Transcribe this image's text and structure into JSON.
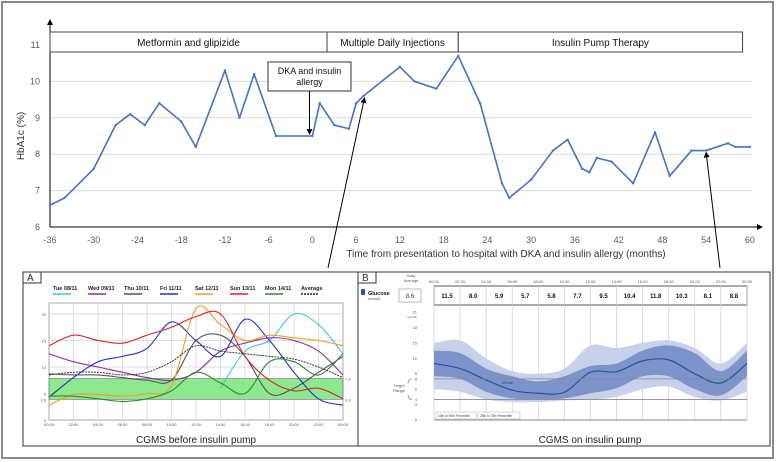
{
  "figure": {
    "panel_a_label": "A",
    "panel_b_label": "B",
    "panel_a_title": "CGMS before insulin pump",
    "panel_b_title": "CGMS on insulin pump"
  },
  "chart_data": [
    {
      "type": "line",
      "id": "hba1c",
      "title": "",
      "xlabel": "Time from presentation to hospital with DKA and insulin allergy (months)",
      "ylabel": "HbA1c (%)",
      "xlim": [
        -36,
        60
      ],
      "ylim": [
        6,
        11
      ],
      "xticks": [
        "-36",
        "-30",
        "-24",
        "-18",
        "-12",
        "-6",
        "0",
        "6",
        "12",
        "18",
        "24",
        "30",
        "36",
        "42",
        "48",
        "54",
        "60"
      ],
      "yticks": [
        "6",
        "7",
        "8",
        "9",
        "10",
        "11"
      ],
      "grid": true,
      "color": "#4472C4",
      "x": [
        -36,
        -34,
        -30,
        -27,
        -25,
        -23,
        -21,
        -18,
        -16,
        -12,
        -10,
        -8,
        -5,
        0,
        1,
        3,
        5,
        6,
        7,
        12,
        14,
        17,
        20,
        23,
        26,
        27,
        30,
        33,
        35,
        37,
        38,
        39,
        41,
        44,
        47,
        49,
        52,
        54,
        57,
        58,
        60
      ],
      "y": [
        6.6,
        6.8,
        7.6,
        8.8,
        9.1,
        8.8,
        9.4,
        8.9,
        8.2,
        10.3,
        9.0,
        10.2,
        8.5,
        8.5,
        9.4,
        8.8,
        8.7,
        9.4,
        9.6,
        10.4,
        10.0,
        9.8,
        10.7,
        9.4,
        7.2,
        6.8,
        7.3,
        8.1,
        8.4,
        7.6,
        7.5,
        7.9,
        7.8,
        7.2,
        8.6,
        7.4,
        8.1,
        8.1,
        8.3,
        8.2,
        8.2
      ],
      "phases": [
        {
          "label": "Metformin and glipizide",
          "start": -36,
          "end": 2
        },
        {
          "label": "Multiple Daily Injections",
          "start": 2,
          "end": 20
        },
        {
          "label": "Insulin Pump Therapy",
          "start": 20,
          "end": 59
        }
      ],
      "annotation": {
        "lines": [
          "DKA and insulin",
          "allergy"
        ],
        "x": 0,
        "y": 8.5
      }
    },
    {
      "type": "line",
      "id": "cgms_before",
      "title": "CGMS before insulin pump",
      "xticks": [
        "00:00",
        "02:00",
        "04:00",
        "06:00",
        "08:00",
        "10:00",
        "12:00",
        "14:00",
        "16:00",
        "18:00",
        "20:00",
        "22:00",
        "00:00"
      ],
      "yticks": [
        "0",
        "3.9",
        "5",
        "10",
        "15",
        "20"
      ],
      "ylim": [
        0,
        22
      ],
      "target_range": {
        "low": 3.9,
        "high": 7.8,
        "low_label": "3.9",
        "high_label": "7.8"
      },
      "hours": [
        0,
        2,
        4,
        6,
        8,
        10,
        12,
        14,
        16,
        18,
        20,
        22,
        24
      ],
      "series": [
        {
          "name": "Tue 08/11",
          "color": "#3EC6E8",
          "values": [
            null,
            null,
            null,
            null,
            null,
            null,
            null,
            6,
            13,
            15,
            20,
            18,
            12.5
          ]
        },
        {
          "name": "Wed 09/11",
          "color": "#8E2F9E",
          "values": [
            12.5,
            11,
            10,
            9,
            8,
            7.5,
            9,
            13,
            14.5,
            15.5,
            15,
            13,
            8.5
          ]
        },
        {
          "name": "Thu 10/11",
          "color": "#555555",
          "values": [
            8.7,
            8.5,
            8.5,
            8,
            7.5,
            7.5,
            15,
            16,
            12,
            5,
            6,
            9,
            12
          ]
        },
        {
          "name": "Fri 11/11",
          "color": "#2233BB",
          "values": [
            4.3,
            8,
            11,
            12,
            13.5,
            18.5,
            15,
            12,
            19,
            15,
            9,
            4,
            2.8
          ]
        },
        {
          "name": "Sat 12/11",
          "color": "#F39C26",
          "values": [
            2.8,
            4.8,
            4.8,
            4.5,
            5,
            6.5,
            21,
            18,
            15,
            16,
            15.5,
            15,
            14
          ]
        },
        {
          "name": "Sun 13/11",
          "color": "#D02828",
          "values": [
            14,
            16,
            15,
            14.5,
            16,
            17.5,
            19.5,
            20,
            12,
            7.5,
            5.5,
            6,
            4
          ]
        },
        {
          "name": "Mon 14/11",
          "color": "#2E8B2E",
          "values": [
            4.5,
            4.5,
            4,
            3.5,
            4,
            5.5,
            9,
            7,
            5,
            11,
            11,
            8.5,
            12.5
          ]
        },
        {
          "name": "Average",
          "color": "#222222",
          "dashed": true,
          "values": [
            8.5,
            9,
            9,
            8.5,
            9,
            11,
            14,
            13,
            12.5,
            12,
            11.5,
            10,
            8
          ]
        }
      ]
    },
    {
      "type": "area",
      "id": "cgms_on",
      "title": "CGMS on insulin pump",
      "metric_label": "Glucose",
      "unit": "mmol/L",
      "daily_average_label": [
        "Daily",
        "Average"
      ],
      "daily_average": "8.6",
      "time_labels": [
        "00:00",
        "02:00",
        "04:00",
        "06:00",
        "08:00",
        "10:00",
        "12:00",
        "14:00",
        "16:00",
        "18:00",
        "20:00",
        "22:00",
        "00:00"
      ],
      "period_averages": [
        "11.5",
        "8.0",
        "5.9",
        "5.7",
        "5.8",
        "7.7",
        "9.5",
        "10.4",
        "11.8",
        "10.3",
        "8.1",
        "8.8"
      ],
      "yticks": [
        "0",
        "3",
        "4",
        "6",
        "8",
        "9",
        "12",
        "15",
        "18",
        "21"
      ],
      "ylim": [
        0,
        21
      ],
      "target_range": {
        "low": 4,
        "high": 8,
        "label": [
          "Target",
          "Range"
        ]
      },
      "hours": [
        0,
        2,
        4,
        6,
        8,
        10,
        12,
        14,
        16,
        18,
        20,
        22,
        24
      ],
      "median": [
        11,
        10,
        7.8,
        5.8,
        5.2,
        5.4,
        9.3,
        9.4,
        11.5,
        11.7,
        9,
        7.2,
        11
      ],
      "p25": [
        8.5,
        8,
        5.5,
        4.2,
        4,
        4.2,
        5.2,
        6.2,
        8.5,
        8.5,
        6,
        4.8,
        8.5
      ],
      "p75": [
        13.5,
        13,
        10,
        8.5,
        7.5,
        8.5,
        10.5,
        11,
        13.5,
        14.5,
        13,
        9.5,
        13.5
      ],
      "p10": [
        6,
        5.5,
        4,
        3.5,
        3.5,
        3.8,
        4,
        4.5,
        6,
        6.5,
        4.5,
        3.8,
        5.5
      ],
      "p90": [
        15,
        15.5,
        12,
        9.5,
        9,
        10,
        14.5,
        14,
        15,
        15.5,
        14,
        11,
        15
      ],
      "legend": {
        "outer": "10th to 90th Percentile",
        "inner": "25th to 75th Percentile",
        "median": "Median"
      },
      "colors": {
        "outer": "#C9D1EA",
        "inner": "#7D93CC",
        "median": "#2B4F9A",
        "target": "#888888"
      }
    }
  ]
}
